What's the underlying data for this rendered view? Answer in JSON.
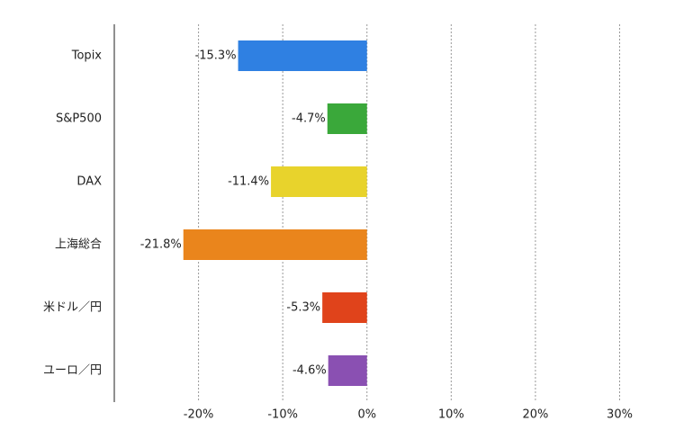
{
  "chart_data": {
    "type": "bar",
    "orientation": "horizontal",
    "categories": [
      "Topix",
      "S&P500",
      "DAX",
      "上海総合",
      "米ドル／円",
      "ユーロ／円"
    ],
    "values": [
      -15.3,
      -4.7,
      -11.4,
      -21.8,
      -5.3,
      -4.6
    ],
    "value_labels": [
      "-15.3%",
      "-4.7%",
      "-11.4%",
      "-21.8%",
      "-5.3%",
      "-4.6%"
    ],
    "colors": [
      "#2f80e2",
      "#3aa83a",
      "#e8d32c",
      "#ea851c",
      "#e0431b",
      "#8a50b2"
    ],
    "xlim": [
      -30,
      30
    ],
    "xticks": [
      {
        "value": -20,
        "label": "-20%"
      },
      {
        "value": -10,
        "label": "-10%"
      },
      {
        "value": 0,
        "label": "0%"
      },
      {
        "value": 10,
        "label": "10%"
      },
      {
        "value": 20,
        "label": "20%"
      },
      {
        "value": 30,
        "label": "30%"
      }
    ],
    "grid": true
  }
}
